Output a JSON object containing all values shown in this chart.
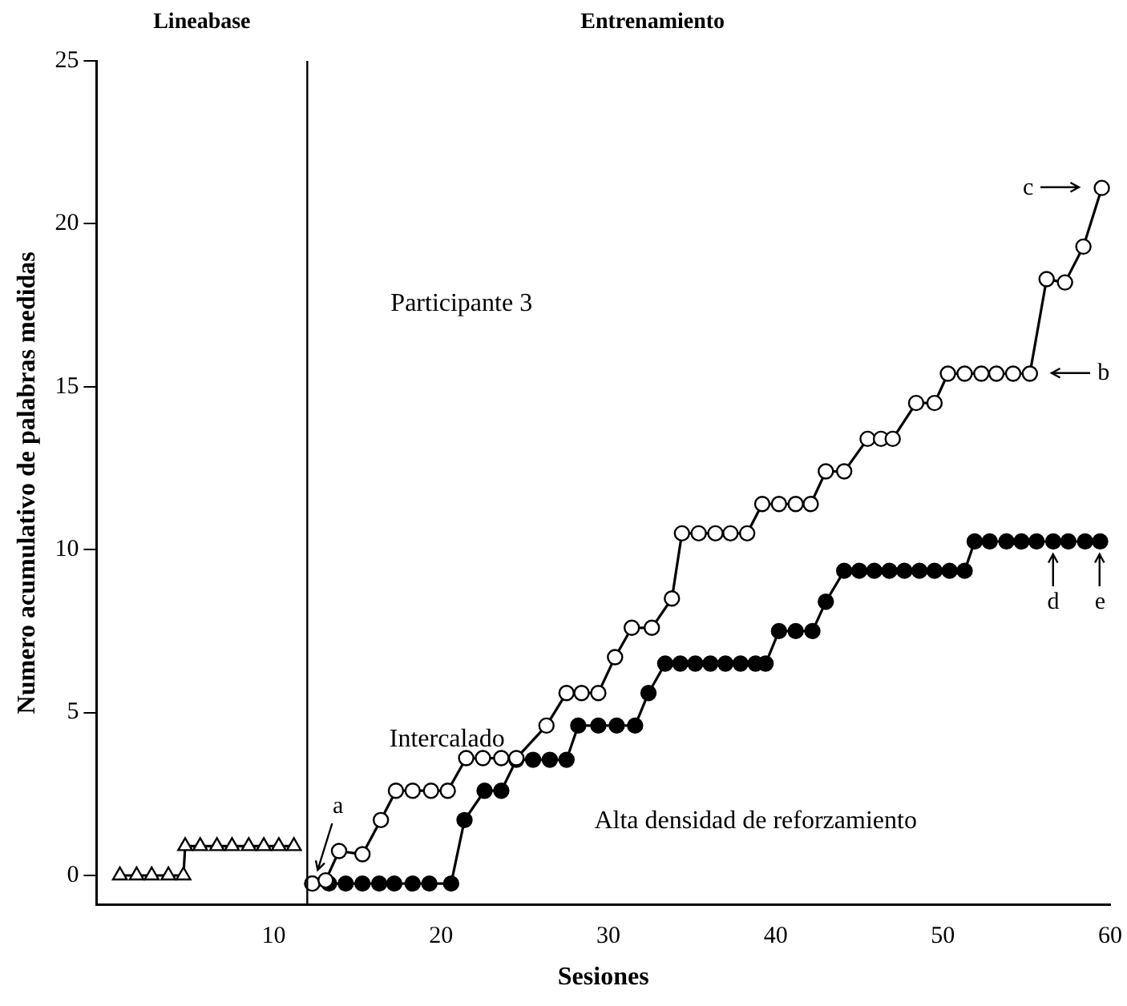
{
  "chart_data": {
    "type": "line",
    "xlabel": "Sesiones",
    "ylabel": "Numero acumulativo de palabras medidas",
    "xlim": [
      -0.6,
      60
    ],
    "xticks": [
      10,
      20,
      30,
      40,
      50,
      60
    ],
    "ylim": [
      -0.9,
      25
    ],
    "yticks": [
      0,
      5,
      10,
      15,
      20,
      25
    ],
    "grid": false,
    "legend": false,
    "line_style": "solid",
    "series": [
      {
        "color": "#000000",
        "marker": "triangle",
        "x": [
          0.8,
          1.8,
          2.7,
          3.7,
          4.6,
          4.7,
          5.6,
          6.6,
          7.5,
          8.5,
          9.4,
          10.3,
          11.2
        ],
        "values": [
          0,
          0,
          0,
          0,
          0,
          0.9,
          0.9,
          0.9,
          0.9,
          0.9,
          0.9,
          0.9,
          0.9
        ]
      },
      {
        "name": "Intercalado",
        "color": "#000000",
        "marker": "circle",
        "x": [
          12.3,
          13.1,
          13.9,
          15.3,
          16.4,
          17.3,
          18.3,
          19.4,
          20.4,
          21.5,
          22.5,
          23.6,
          24.5,
          26.3,
          27.5,
          28.4,
          29.4,
          30.4,
          31.4,
          32.6,
          33.8,
          34.4,
          35.4,
          36.4,
          37.3,
          38.3,
          39.2,
          40.2,
          41.2,
          42.1,
          43.0,
          44.1,
          45.5,
          46.3,
          47.0,
          48.4,
          49.5,
          50.3,
          51.3,
          52.3,
          53.2,
          54.2,
          55.2,
          56.2,
          57.3,
          58.4,
          59.5
        ],
        "values": [
          -0.25,
          -0.15,
          0.75,
          0.65,
          1.7,
          2.6,
          2.6,
          2.6,
          2.6,
          3.6,
          3.6,
          3.6,
          3.6,
          4.6,
          5.6,
          5.6,
          5.6,
          6.7,
          7.6,
          7.6,
          8.5,
          10.5,
          10.5,
          10.5,
          10.5,
          10.5,
          11.4,
          11.4,
          11.4,
          11.4,
          12.4,
          12.4,
          13.4,
          13.4,
          13.4,
          14.5,
          14.5,
          15.4,
          15.4,
          15.4,
          15.4,
          15.4,
          15.4,
          18.3,
          18.2,
          19.3,
          21.1
        ]
      },
      {
        "name": "Alta densidad de reforzamiento",
        "color": "#000000",
        "marker": "circle",
        "x": [
          12.3,
          13.3,
          14.3,
          15.3,
          16.3,
          17.2,
          18.3,
          19.3,
          20.6,
          21.4,
          22.6,
          23.6,
          24.5,
          25.5,
          26.5,
          27.5,
          28.2,
          29.4,
          30.5,
          31.6,
          32.4,
          33.4,
          34.3,
          35.2,
          36.1,
          37.0,
          37.9,
          38.8,
          39.4,
          40.2,
          41.2,
          42.2,
          43.0,
          44.1,
          45.0,
          45.9,
          46.8,
          47.7,
          48.6,
          49.5,
          50.4,
          51.3,
          51.9,
          52.8,
          53.8,
          54.7,
          55.6,
          56.6,
          57.5,
          58.5,
          59.4
        ],
        "values": [
          -0.25,
          -0.25,
          -0.25,
          -0.25,
          -0.25,
          -0.25,
          -0.25,
          -0.25,
          -0.25,
          1.7,
          2.6,
          2.6,
          3.55,
          3.55,
          3.55,
          3.55,
          4.6,
          4.6,
          4.6,
          4.6,
          5.6,
          6.5,
          6.5,
          6.5,
          6.5,
          6.5,
          6.5,
          6.5,
          6.5,
          7.5,
          7.5,
          7.5,
          8.4,
          9.35,
          9.35,
          9.35,
          9.35,
          9.35,
          9.35,
          9.35,
          9.35,
          9.35,
          10.25,
          10.25,
          10.25,
          10.25,
          10.25,
          10.25,
          10.25,
          10.25,
          10.25
        ]
      }
    ],
    "ref_lines": [
      {
        "axis": "x",
        "value": 12
      }
    ],
    "annotations": [
      "Lineabase",
      "Entrenamiento",
      "Participante 3",
      {
        "text": "a",
        "x": 12.3,
        "y": -0.25
      },
      {
        "text": "b",
        "x": 55.2,
        "y": 15.4
      },
      {
        "text": "c",
        "x": 59.5,
        "y": 21.1
      },
      {
        "text": "d",
        "x": 56.6,
        "y": 10.25
      },
      {
        "text": "e",
        "x": 59.4,
        "y": 10.25
      }
    ]
  }
}
